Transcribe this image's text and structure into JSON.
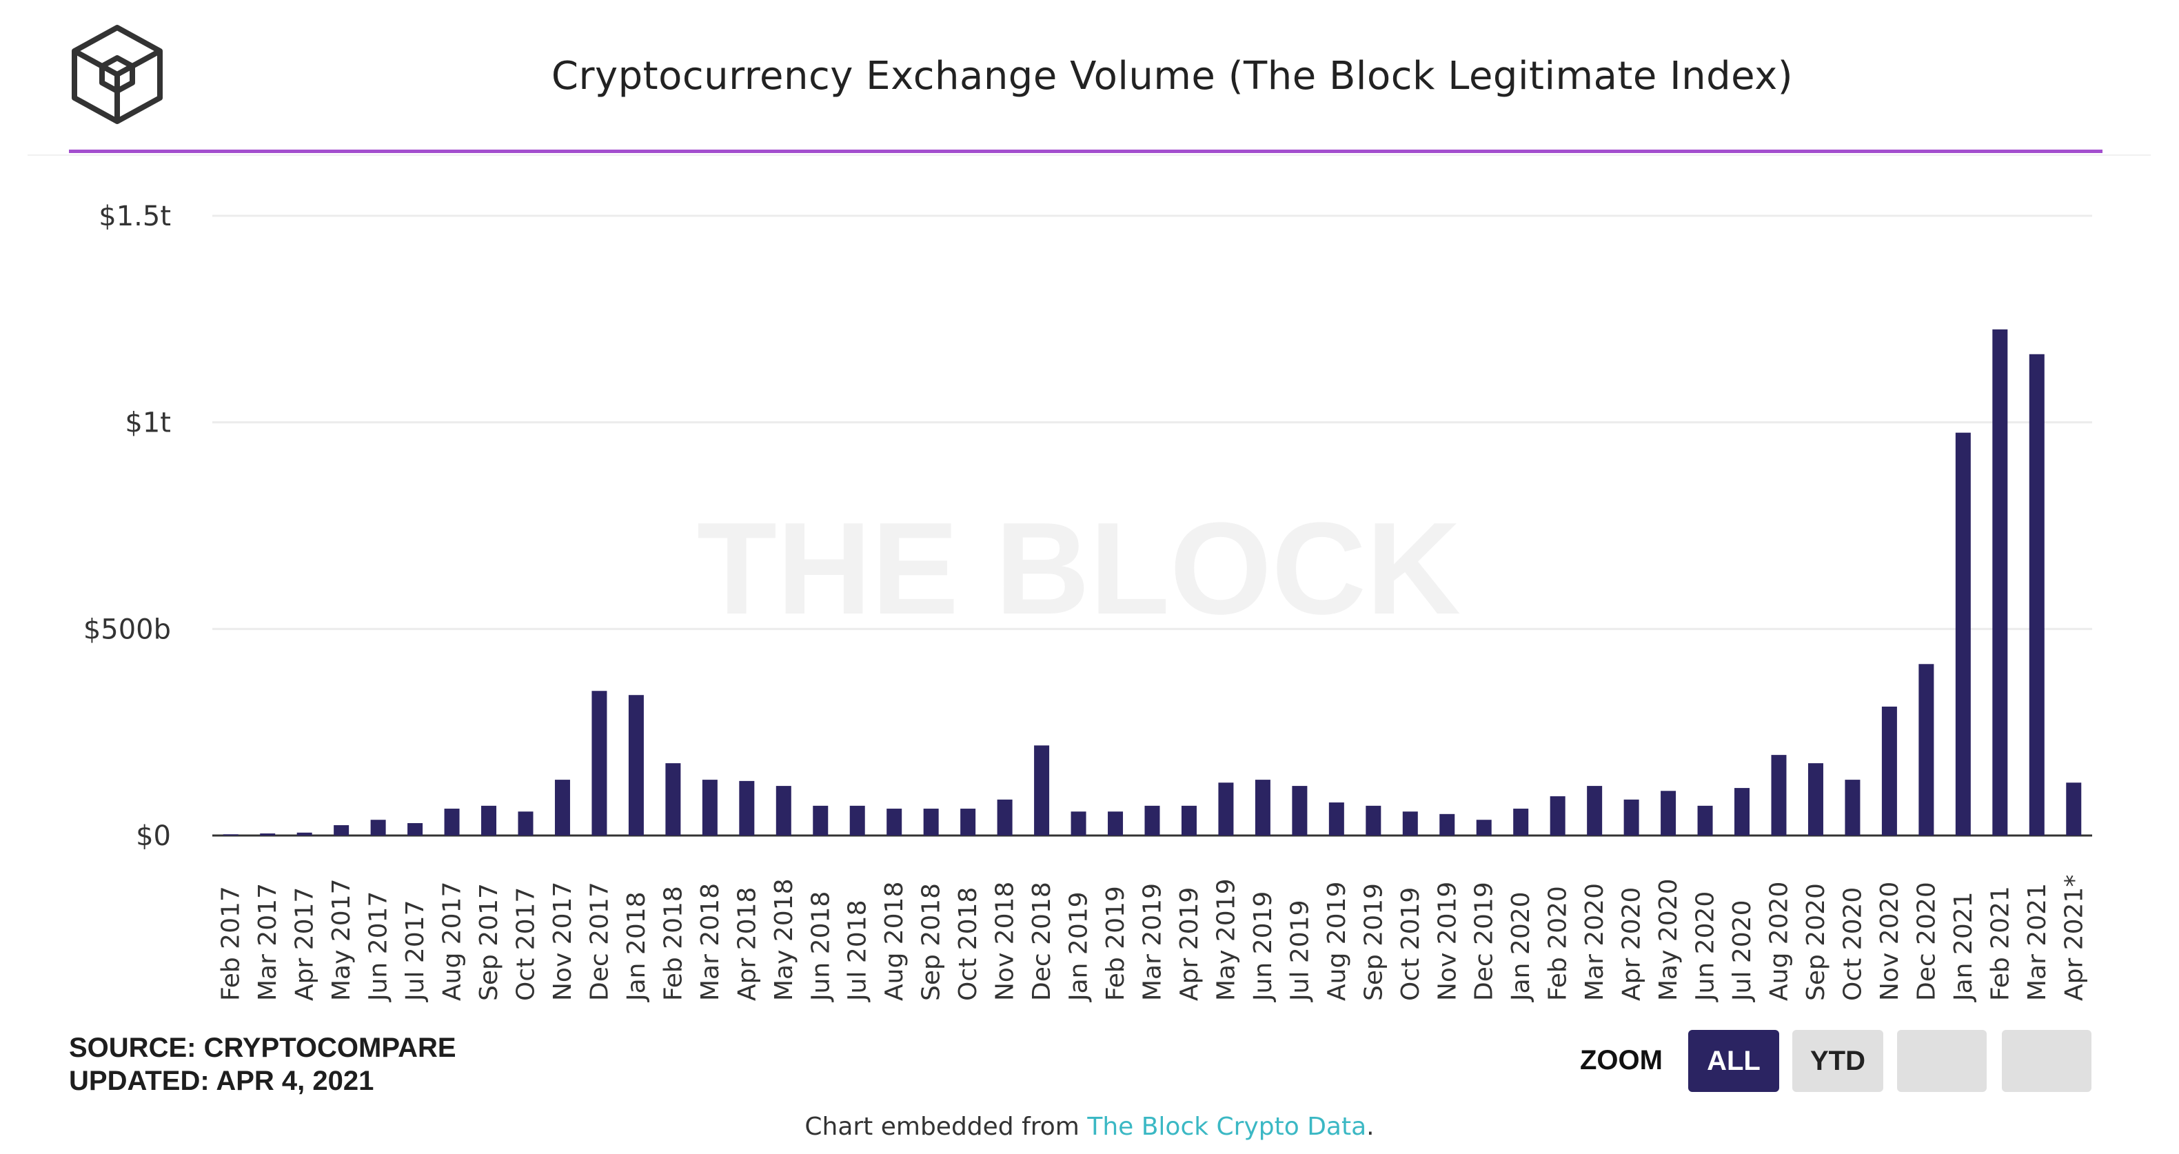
{
  "header": {
    "title": "Cryptocurrency Exchange Volume (The Block Legitimate Index)"
  },
  "watermark": "THE BLOCK",
  "footer": {
    "source": "SOURCE: CRYPTOCOMPARE",
    "updated": "UPDATED: APR 4, 2021",
    "zoom_label": "ZOOM",
    "zoom_all": "ALL",
    "zoom_ytd": "YTD",
    "embed_prefix": "Chart embedded from ",
    "embed_link": "The Block Crypto Data",
    "embed_suffix": "."
  },
  "colors": {
    "bar": "#2b2462",
    "accent_rule": "#a34fce",
    "link": "#3bb8c4",
    "grid": "#ececec"
  },
  "chart_data": {
    "type": "bar",
    "title": "Cryptocurrency Exchange Volume (The Block Legitimate Index)",
    "xlabel": "",
    "ylabel": "",
    "ylim": [
      0,
      1500
    ],
    "unit": "billions USD",
    "grid": true,
    "y_ticks": [
      {
        "value": 0,
        "label": "$0"
      },
      {
        "value": 500,
        "label": "$500b"
      },
      {
        "value": 1000,
        "label": "$1t"
      },
      {
        "value": 1500,
        "label": "$1.5t"
      }
    ],
    "categories": [
      "Feb 2017",
      "Mar 2017",
      "Apr 2017",
      "May 2017",
      "Jun 2017",
      "Jul 2017",
      "Aug 2017",
      "Sep 2017",
      "Oct 2017",
      "Nov 2017",
      "Dec 2017",
      "Jan 2018",
      "Feb 2018",
      "Mar 2018",
      "Apr 2018",
      "May 2018",
      "Jun 2018",
      "Jul 2018",
      "Aug 2018",
      "Sep 2018",
      "Oct 2018",
      "Nov 2018",
      "Dec 2018",
      "Jan 2019",
      "Feb 2019",
      "Mar 2019",
      "Apr 2019",
      "May 2019",
      "Jun 2019",
      "Jul 2019",
      "Aug 2019",
      "Sep 2019",
      "Oct 2019",
      "Nov 2019",
      "Dec 2019",
      "Jan 2020",
      "Feb 2020",
      "Mar 2020",
      "Apr 2020",
      "May 2020",
      "Jun 2020",
      "Jul 2020",
      "Aug 2020",
      "Sep 2020",
      "Oct 2020",
      "Nov 2020",
      "Dec 2020",
      "Jan 2021",
      "Feb 2021",
      "Mar 2021",
      "Apr 2021*"
    ],
    "values": [
      3,
      5,
      7,
      25,
      38,
      30,
      65,
      72,
      58,
      135,
      350,
      340,
      175,
      135,
      132,
      120,
      72,
      72,
      65,
      65,
      65,
      87,
      218,
      58,
      58,
      72,
      72,
      128,
      135,
      120,
      80,
      72,
      58,
      52,
      38,
      65,
      95,
      120,
      87,
      108,
      72,
      115,
      195,
      175,
      135,
      312,
      415,
      975,
      1225,
      1165,
      128
    ]
  }
}
